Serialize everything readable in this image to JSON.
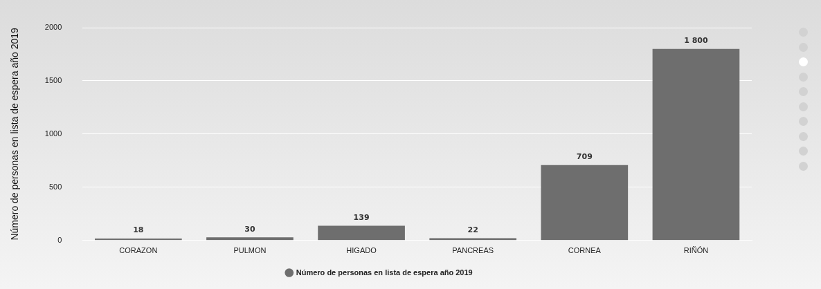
{
  "chart_data": {
    "type": "bar",
    "ylabel": "Número de personas en lista de espera año 2019",
    "categories": [
      "CORAZON",
      "PULMON",
      "HIGADO",
      "PANCREAS",
      "CORNEA",
      "RIÑÓN"
    ],
    "series": [
      {
        "name": "Número de personas en lista de espera año 2019",
        "color": "#6e6e6e",
        "values": [
          18,
          30,
          139,
          22,
          709,
          1800
        ],
        "value_labels": [
          "18",
          "30",
          "139",
          "22",
          "709",
          "1 800"
        ]
      }
    ],
    "ylim": [
      0,
      2000
    ],
    "yticks": [
      0,
      500,
      1000,
      1500,
      2000
    ],
    "grid": "y",
    "legend": "bottom"
  }
}
